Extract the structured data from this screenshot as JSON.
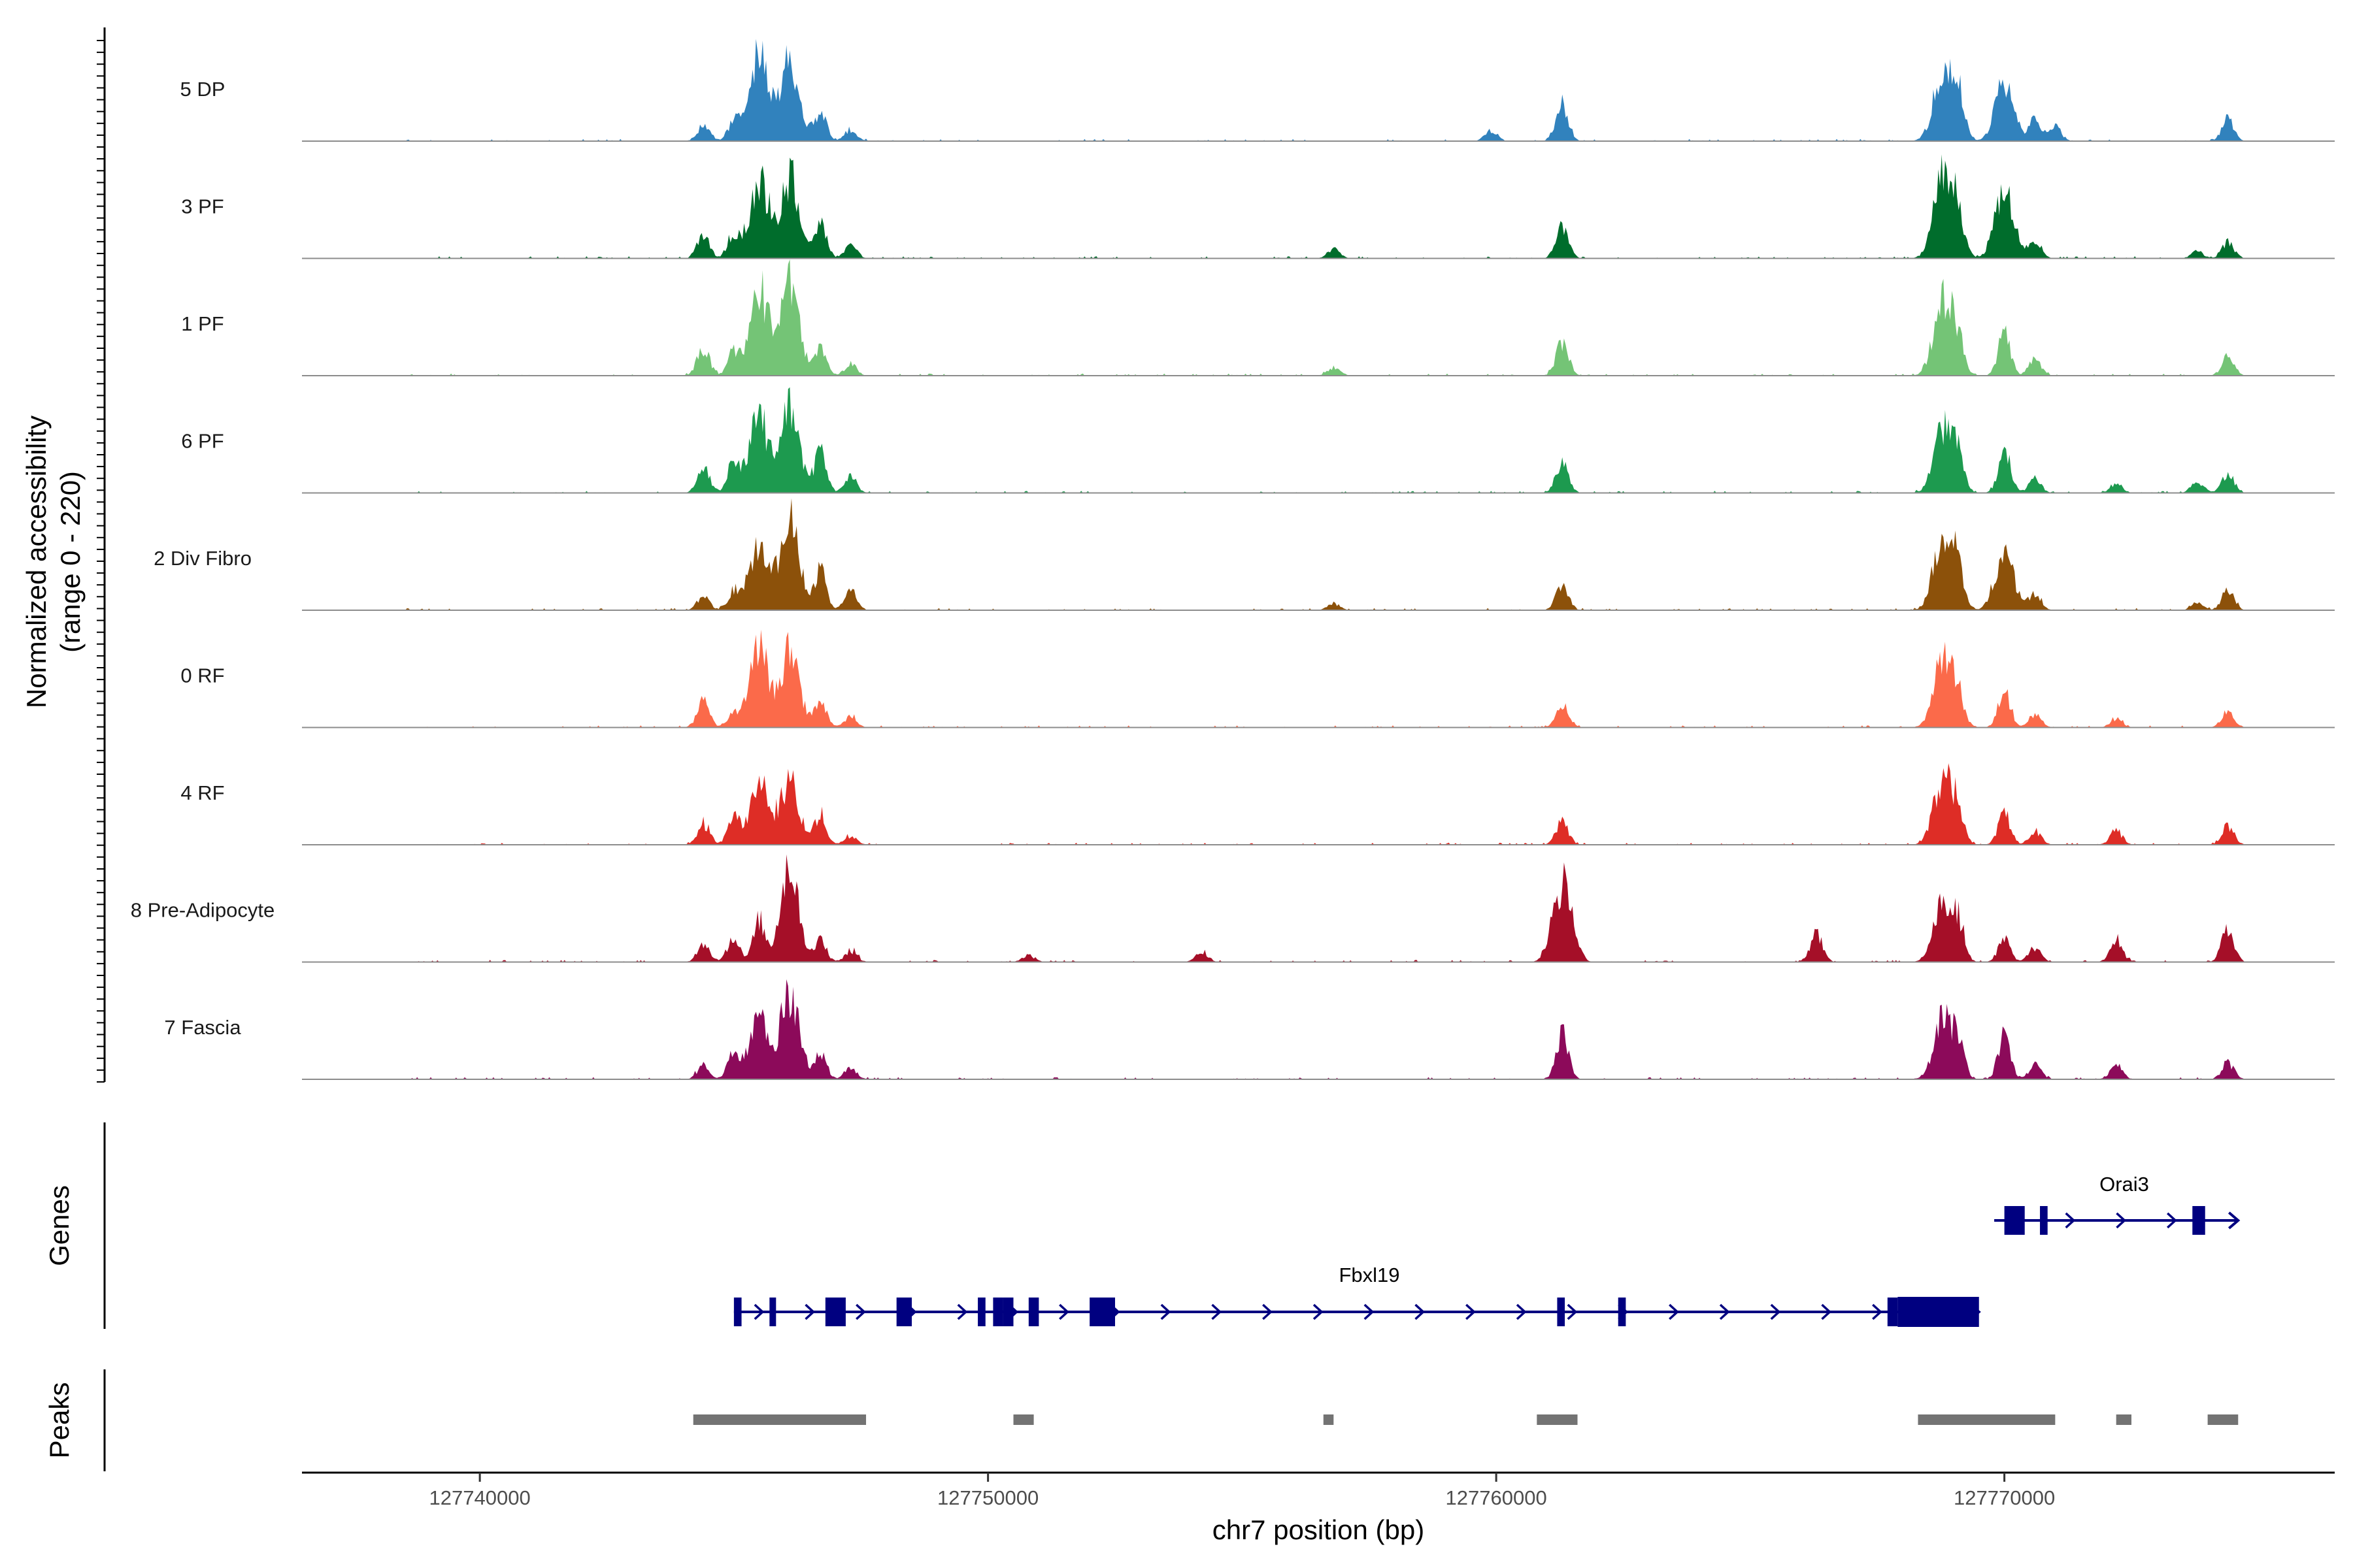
{
  "chart_data": {
    "type": "area",
    "title": "",
    "xlabel": "chr7 position (bp)",
    "ylabel": "Normalized accessibility",
    "ylabel_range": "(range 0 - 220)",
    "xlim": [
      127736500,
      127776500
    ],
    "ylim": [
      0,
      220
    ],
    "x_ticks": [
      127740000,
      127750000,
      127760000,
      127770000
    ],
    "x_tick_labels": [
      "127740000",
      "127750000",
      "127760000",
      "127770000"
    ],
    "grid": false,
    "panel_labels": {
      "genes": "Genes",
      "peaks": "Peaks"
    },
    "series": [
      {
        "name": "5 DP",
        "color": "#3182BD",
        "peaks": [
          [
            127744400,
            35
          ],
          [
            127745000,
            40
          ],
          [
            127745500,
            190
          ],
          [
            127746100,
            175
          ],
          [
            127746700,
            60
          ],
          [
            127747300,
            25
          ],
          [
            127759900,
            22
          ],
          [
            127761300,
            80
          ],
          [
            127768800,
            155
          ],
          [
            127769100,
            90
          ],
          [
            127770000,
            120
          ],
          [
            127770600,
            45
          ],
          [
            127771000,
            30
          ],
          [
            127774400,
            50
          ]
        ]
      },
      {
        "name": "3 PF",
        "color": "#006D2C",
        "peaks": [
          [
            127744400,
            50
          ],
          [
            127745000,
            55
          ],
          [
            127745500,
            170
          ],
          [
            127746100,
            175
          ],
          [
            127746700,
            70
          ],
          [
            127747300,
            30
          ],
          [
            127756800,
            20
          ],
          [
            127761300,
            75
          ],
          [
            127768800,
            175
          ],
          [
            127769100,
            80
          ],
          [
            127770000,
            140
          ],
          [
            127770600,
            40
          ],
          [
            127773800,
            15
          ],
          [
            127774400,
            35
          ]
        ]
      },
      {
        "name": "1 PF",
        "color": "#74C476",
        "peaks": [
          [
            127744400,
            60
          ],
          [
            127745000,
            50
          ],
          [
            127745500,
            180
          ],
          [
            127746100,
            200
          ],
          [
            127746700,
            55
          ],
          [
            127747300,
            25
          ],
          [
            127756800,
            18
          ],
          [
            127761300,
            75
          ],
          [
            127768800,
            165
          ],
          [
            127769100,
            60
          ],
          [
            127770000,
            90
          ],
          [
            127770600,
            35
          ],
          [
            127774400,
            40
          ]
        ]
      },
      {
        "name": "6 PF",
        "color": "#1D9A4F",
        "peaks": [
          [
            127744400,
            55
          ],
          [
            127745000,
            70
          ],
          [
            127745500,
            160
          ],
          [
            127746100,
            175
          ],
          [
            127746700,
            85
          ],
          [
            127747300,
            35
          ],
          [
            127761300,
            65
          ],
          [
            127768800,
            140
          ],
          [
            127769100,
            60
          ],
          [
            127770000,
            90
          ],
          [
            127770600,
            30
          ],
          [
            127772200,
            20
          ],
          [
            127773800,
            25
          ],
          [
            127774400,
            40
          ]
        ]
      },
      {
        "name": "2 Div Fibro",
        "color": "#8C510A",
        "peaks": [
          [
            127744400,
            30
          ],
          [
            127745000,
            40
          ],
          [
            127745500,
            155
          ],
          [
            127746100,
            190
          ],
          [
            127746700,
            85
          ],
          [
            127747300,
            40
          ],
          [
            127756800,
            15
          ],
          [
            127761300,
            60
          ],
          [
            127768800,
            165
          ],
          [
            127769100,
            70
          ],
          [
            127770000,
            120
          ],
          [
            127770600,
            35
          ],
          [
            127773800,
            15
          ],
          [
            127774400,
            45
          ]
        ]
      },
      {
        "name": "0 RF",
        "color": "#FB6A4A",
        "peaks": [
          [
            127744400,
            55
          ],
          [
            127745000,
            35
          ],
          [
            127745500,
            165
          ],
          [
            127746100,
            160
          ],
          [
            127746700,
            55
          ],
          [
            127747300,
            25
          ],
          [
            127761300,
            55
          ],
          [
            127768800,
            150
          ],
          [
            127769100,
            55
          ],
          [
            127770000,
            80
          ],
          [
            127770600,
            30
          ],
          [
            127772200,
            20
          ],
          [
            127774400,
            35
          ]
        ]
      },
      {
        "name": "4 RF",
        "color": "#DE2D26",
        "peaks": [
          [
            127744400,
            45
          ],
          [
            127745000,
            55
          ],
          [
            127745500,
            135
          ],
          [
            127746100,
            140
          ],
          [
            127746700,
            65
          ],
          [
            127747300,
            20
          ],
          [
            127761300,
            50
          ],
          [
            127768800,
            145
          ],
          [
            127769100,
            55
          ],
          [
            127770000,
            65
          ],
          [
            127770600,
            30
          ],
          [
            127772200,
            30
          ],
          [
            127774400,
            40
          ]
        ]
      },
      {
        "name": "8 Pre-Adipocyte",
        "color": "#A50F28",
        "peaks": [
          [
            127744400,
            35
          ],
          [
            127745000,
            55
          ],
          [
            127745500,
            90
          ],
          [
            127746100,
            190
          ],
          [
            127746700,
            45
          ],
          [
            127747300,
            25
          ],
          [
            127750800,
            15
          ],
          [
            127754200,
            20
          ],
          [
            127761300,
            170
          ],
          [
            127766300,
            60
          ],
          [
            127768800,
            130
          ],
          [
            127769100,
            70
          ],
          [
            127770000,
            50
          ],
          [
            127770600,
            30
          ],
          [
            127772200,
            50
          ],
          [
            127774400,
            75
          ]
        ]
      },
      {
        "name": "7 Fascia",
        "color": "#8C0A5A",
        "peaks": [
          [
            127744400,
            30
          ],
          [
            127745000,
            60
          ],
          [
            127745500,
            125
          ],
          [
            127746100,
            180
          ],
          [
            127746700,
            55
          ],
          [
            127747300,
            25
          ],
          [
            127761300,
            95
          ],
          [
            127768800,
            130
          ],
          [
            127769100,
            60
          ],
          [
            127770000,
            95
          ],
          [
            127770600,
            30
          ],
          [
            127772200,
            30
          ],
          [
            127774400,
            35
          ]
        ]
      }
    ],
    "genes": [
      {
        "name": "Fbxl19",
        "strand": "+",
        "start": 127745000,
        "end": 127769500,
        "exons": [
          [
            127745000,
            127745150
          ],
          [
            127745700,
            127745800
          ],
          [
            127746800,
            127747200
          ],
          [
            127748200,
            127748500
          ],
          [
            127749800,
            127749950
          ],
          [
            127750100,
            127750300
          ],
          [
            127750300,
            127750500
          ],
          [
            127750800,
            127751000
          ],
          [
            127752000,
            127752500
          ],
          [
            127761200,
            127761350
          ],
          [
            127762400,
            127762550
          ],
          [
            127767700,
            127767900
          ],
          [
            127767900,
            127769500
          ]
        ]
      },
      {
        "name": "Orai3",
        "strand": "+",
        "start": 127769800,
        "end": 127774600,
        "exons": [
          [
            127770000,
            127770400
          ],
          [
            127770700,
            127770850
          ],
          [
            127773700,
            127773950
          ]
        ]
      }
    ],
    "peaks_track": [
      [
        127744200,
        127747600
      ],
      [
        127750500,
        127750900
      ],
      [
        127756600,
        127756800
      ],
      [
        127760800,
        127761600
      ],
      [
        127768300,
        127771000
      ],
      [
        127772200,
        127772500
      ],
      [
        127774000,
        127774600
      ]
    ]
  }
}
